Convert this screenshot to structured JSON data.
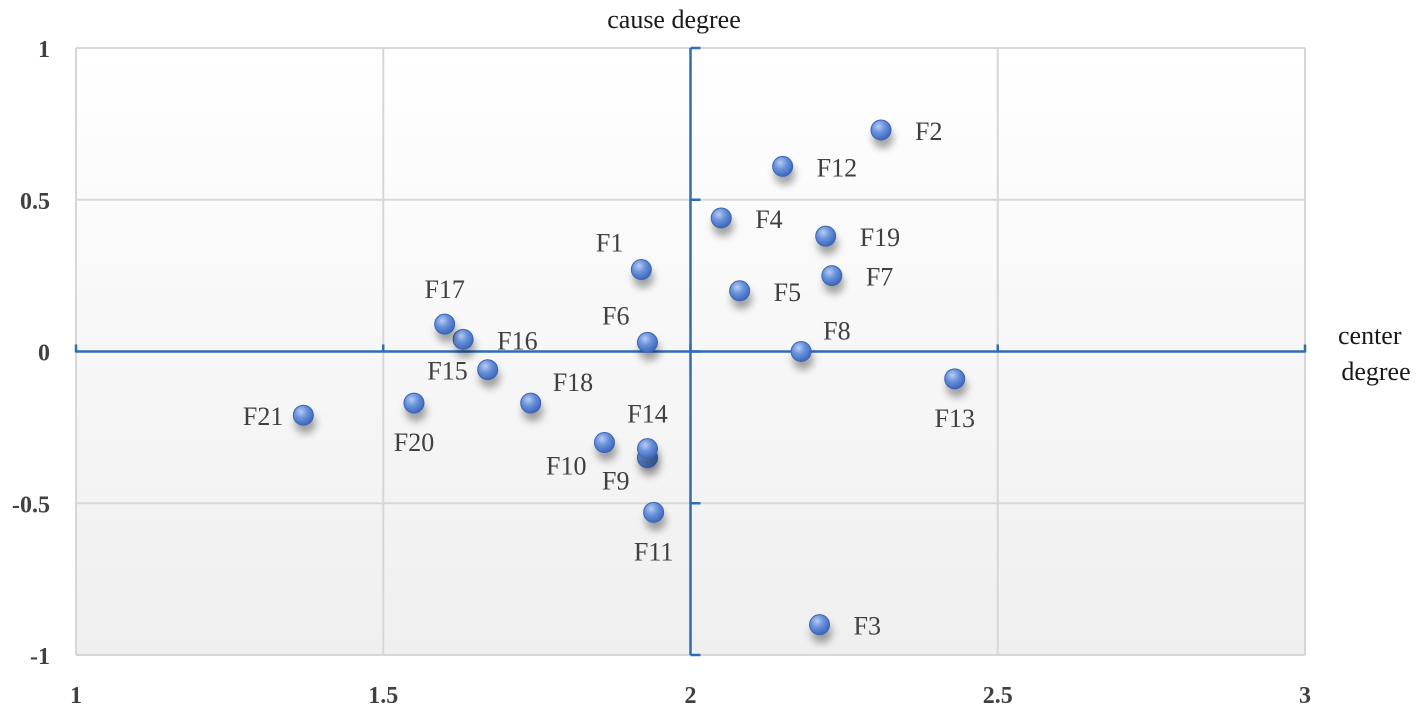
{
  "chart_data": {
    "type": "scatter",
    "title": "",
    "xlabel": "center degree",
    "ylabel": "cause degree",
    "xlim": [
      1,
      3
    ],
    "ylim": [
      -1,
      1
    ],
    "x_ticks": [
      "1",
      "1.5",
      "2",
      "2.5",
      "3"
    ],
    "y_ticks": [
      "1",
      "0.5",
      "0",
      "-0.5",
      "-1"
    ],
    "grid": true,
    "point_color": "#4f7fd6",
    "axis_color": "#2e6db5",
    "points": [
      {
        "label": "F1",
        "x": 1.92,
        "y": 0.27,
        "label_pos": "upper-left"
      },
      {
        "label": "F2",
        "x": 2.31,
        "y": 0.73,
        "label_pos": "right"
      },
      {
        "label": "F3",
        "x": 2.21,
        "y": -0.9,
        "label_pos": "right"
      },
      {
        "label": "F4",
        "x": 2.05,
        "y": 0.44,
        "label_pos": "right"
      },
      {
        "label": "F5",
        "x": 2.08,
        "y": 0.2,
        "label_pos": "right"
      },
      {
        "label": "F6",
        "x": 1.93,
        "y": 0.03,
        "label_pos": "upper-left"
      },
      {
        "label": "F7",
        "x": 2.23,
        "y": 0.25,
        "label_pos": "right"
      },
      {
        "label": "F8",
        "x": 2.18,
        "y": 0.0,
        "label_pos": "upper-right"
      },
      {
        "label": "F9",
        "x": 1.93,
        "y": -0.35,
        "label_pos": "lower-left"
      },
      {
        "label": "F10",
        "x": 1.86,
        "y": -0.3,
        "label_pos": "lower-left"
      },
      {
        "label": "F11",
        "x": 1.94,
        "y": -0.53,
        "label_pos": "below"
      },
      {
        "label": "F12",
        "x": 2.15,
        "y": 0.61,
        "label_pos": "right"
      },
      {
        "label": "F13",
        "x": 2.43,
        "y": -0.09,
        "label_pos": "below"
      },
      {
        "label": "F14",
        "x": 1.93,
        "y": -0.32,
        "label_pos": "above"
      },
      {
        "label": "F15",
        "x": 1.67,
        "y": -0.06,
        "label_pos": "left"
      },
      {
        "label": "F16",
        "x": 1.63,
        "y": 0.04,
        "label_pos": "right"
      },
      {
        "label": "F17",
        "x": 1.6,
        "y": 0.09,
        "label_pos": "above"
      },
      {
        "label": "F18",
        "x": 1.74,
        "y": -0.17,
        "label_pos": "upper-right"
      },
      {
        "label": "F19",
        "x": 2.22,
        "y": 0.38,
        "label_pos": "right"
      },
      {
        "label": "F20",
        "x": 1.55,
        "y": -0.17,
        "label_pos": "below"
      },
      {
        "label": "F21",
        "x": 1.37,
        "y": -0.21,
        "label_pos": "left"
      }
    ]
  }
}
